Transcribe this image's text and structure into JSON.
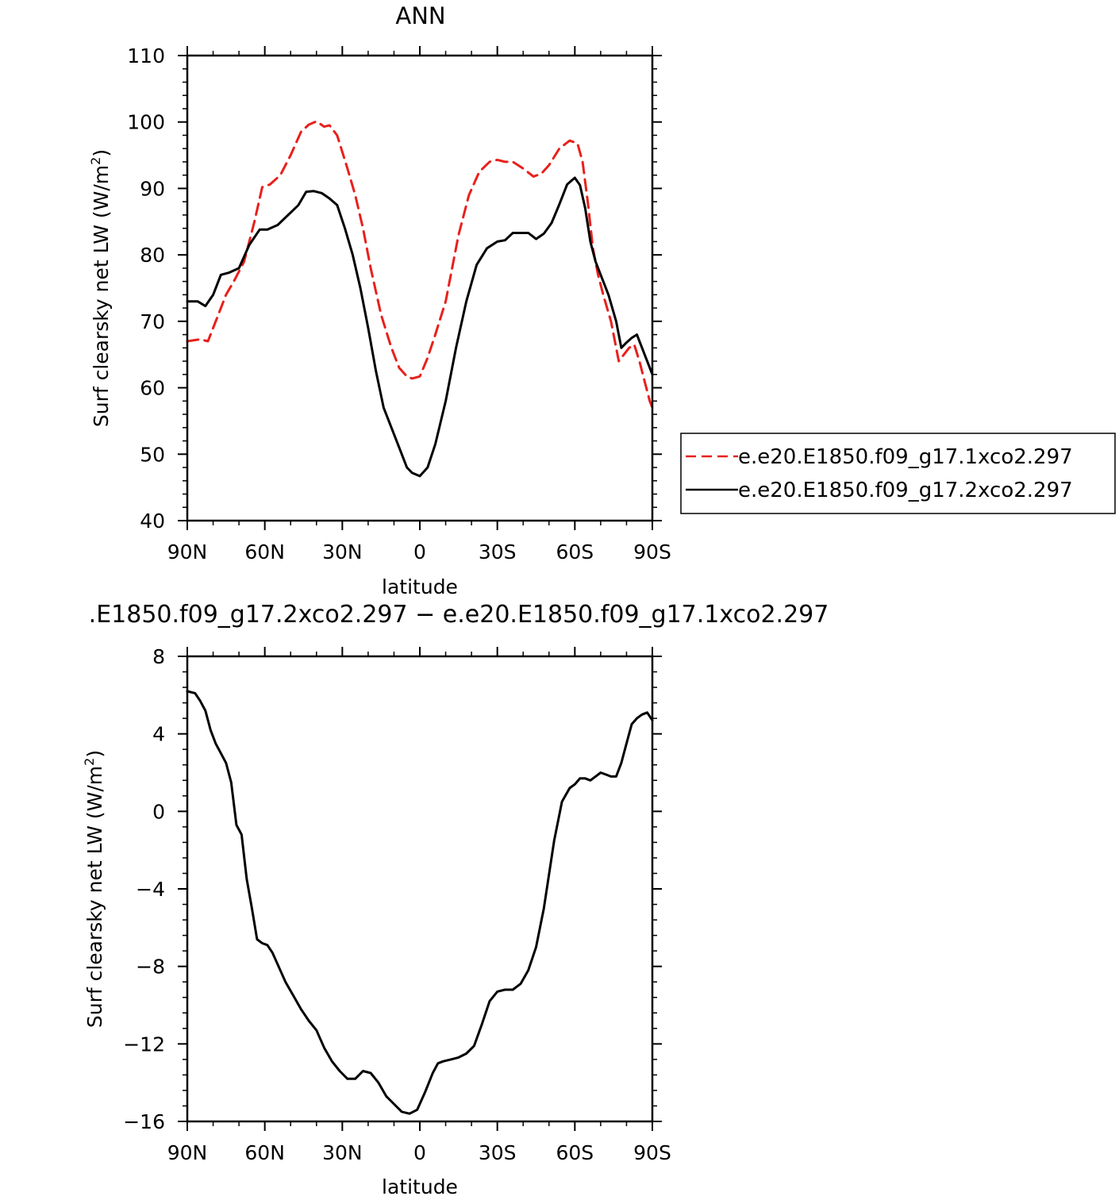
{
  "chart_data": [
    {
      "type": "line",
      "title": "ANN",
      "xlabel": "latitude",
      "ylabel": "Surf clearsky net LW (W/m²)",
      "ylabel_parts": {
        "main": "Surf clearsky net LW (W/m",
        "sup": "2",
        "close": ")"
      },
      "xlim": [
        -90,
        90
      ],
      "ylim": [
        40,
        110
      ],
      "x_ticks": [
        -90,
        -60,
        -30,
        0,
        30,
        60,
        90
      ],
      "x_tick_labels": [
        "90N",
        "60N",
        "30N",
        "0",
        "30S",
        "60S",
        "90S"
      ],
      "y_ticks": [
        40,
        50,
        60,
        70,
        80,
        90,
        100,
        110
      ],
      "y_tick_labels": [
        "40",
        "50",
        "60",
        "70",
        "80",
        "90",
        "100",
        "110"
      ],
      "legend_position": "right",
      "series": [
        {
          "name": "e.e20.E1850.f09_g17.1xco2.297",
          "color": "#e8201c",
          "dash": "dashed",
          "x": [
            -90,
            -85,
            -82,
            -78,
            -75,
            -72,
            -68,
            -64,
            -61,
            -58,
            -54,
            -50,
            -46,
            -43,
            -40,
            -37,
            -35,
            -32,
            -28,
            -25,
            -22,
            -19,
            -15,
            -11,
            -8,
            -5,
            -3,
            0,
            3,
            6,
            10,
            15,
            19,
            23,
            27,
            30,
            33,
            36,
            40,
            44,
            47,
            50,
            54,
            58,
            61,
            63,
            65,
            67,
            69,
            71,
            74,
            77,
            79,
            81,
            83,
            85,
            87,
            89,
            90
          ],
          "y": [
            67,
            67.3,
            67,
            71,
            74,
            76,
            79,
            85,
            90.2,
            90.6,
            92,
            95,
            98.5,
            99.6,
            100.1,
            99.3,
            99.5,
            98,
            93,
            89,
            84,
            78,
            71,
            66,
            63,
            61.7,
            61.4,
            61.7,
            64.5,
            68,
            73,
            83,
            89,
            92.5,
            94,
            94.3,
            94,
            94,
            93,
            91.8,
            92.2,
            93.5,
            96,
            97.2,
            96.8,
            94,
            88,
            81,
            77,
            74,
            70,
            64,
            65,
            66,
            66.5,
            64,
            61,
            58,
            57
          ]
        },
        {
          "name": "e.e20.E1850.f09_g17.2xco2.297",
          "color": "#000000",
          "dash": "solid",
          "x": [
            -90,
            -86,
            -83,
            -80,
            -77,
            -74,
            -70,
            -66,
            -62,
            -59,
            -55,
            -51,
            -47,
            -44,
            -41,
            -38,
            -35,
            -32,
            -29,
            -26,
            -23,
            -20,
            -17,
            -14,
            -11,
            -8,
            -5,
            -3,
            0,
            3,
            6,
            10,
            14,
            18,
            22,
            26,
            30,
            33,
            36,
            39,
            42,
            45,
            48,
            51,
            54,
            57,
            60,
            62,
            64,
            66,
            68,
            70,
            73,
            76,
            78,
            80,
            82,
            84,
            86,
            88,
            90
          ],
          "y": [
            73,
            73,
            72.3,
            74,
            77,
            77.3,
            78,
            81.5,
            83.8,
            83.8,
            84.5,
            86,
            87.5,
            89.5,
            89.6,
            89.3,
            88.5,
            87.5,
            84,
            80,
            75,
            69,
            62.5,
            57,
            54,
            51,
            48,
            47.2,
            46.7,
            48,
            51.5,
            58,
            66,
            73,
            78.5,
            81,
            82,
            82.2,
            83.3,
            83.3,
            83.3,
            82.4,
            83.2,
            84.8,
            87.6,
            90.6,
            91.6,
            90.5,
            87,
            82,
            79,
            77,
            74,
            70,
            66,
            66.8,
            67.5,
            68,
            66,
            64,
            62
          ]
        }
      ]
    },
    {
      "type": "line",
      "title": ".E1850.f09_g17.2xco2.297 − e.e20.E1850.f09_g17.1xco2.297",
      "xlabel": "latitude",
      "ylabel": "Surf clearsky net LW (W/m²)",
      "ylabel_parts": {
        "main": "Surf clearsky net LW (W/m",
        "sup": "2",
        "close": ")"
      },
      "xlim": [
        -90,
        90
      ],
      "ylim": [
        -16,
        8
      ],
      "x_ticks": [
        -90,
        -60,
        -30,
        0,
        30,
        60,
        90
      ],
      "x_tick_labels": [
        "90N",
        "60N",
        "30N",
        "0",
        "30S",
        "60S",
        "90S"
      ],
      "y_ticks": [
        -16,
        -12,
        -8,
        -4,
        0,
        4,
        8
      ],
      "y_tick_labels": [
        "−16",
        "−12",
        "−8",
        "−4",
        "0",
        "4",
        "8"
      ],
      "series": [
        {
          "color": "#000000",
          "dash": "solid",
          "x": [
            -90,
            -87,
            -85,
            -83,
            -81,
            -79,
            -77,
            -75,
            -73,
            -71,
            -69,
            -67,
            -65,
            -63,
            -61,
            -59,
            -57,
            -55,
            -52,
            -49,
            -46,
            -43,
            -40,
            -37,
            -34,
            -31,
            -28,
            -25,
            -22,
            -19,
            -16,
            -13,
            -10,
            -7,
            -4,
            -1,
            2,
            5,
            7,
            9,
            12,
            15,
            18,
            21,
            24,
            27,
            30,
            33,
            36,
            39,
            42,
            45,
            48,
            52,
            55,
            58,
            60,
            62,
            64,
            66,
            68,
            70,
            72,
            74,
            76,
            78,
            80,
            82,
            84,
            86,
            88,
            90
          ],
          "y": [
            6.2,
            6.1,
            5.7,
            5.2,
            4.2,
            3.5,
            3.0,
            2.5,
            1.5,
            -0.7,
            -1.2,
            -3.5,
            -5.0,
            -6.6,
            -6.8,
            -6.9,
            -7.3,
            -7.9,
            -8.8,
            -9.5,
            -10.2,
            -10.8,
            -11.3,
            -12.2,
            -12.9,
            -13.4,
            -13.8,
            -13.8,
            -13.4,
            -13.5,
            -14.0,
            -14.7,
            -15.1,
            -15.5,
            -15.6,
            -15.4,
            -14.5,
            -13.5,
            -13.0,
            -12.9,
            -12.8,
            -12.7,
            -12.5,
            -12.1,
            -11.0,
            -9.8,
            -9.3,
            -9.2,
            -9.2,
            -8.9,
            -8.2,
            -7.0,
            -5.0,
            -1.5,
            0.5,
            1.2,
            1.4,
            1.7,
            1.7,
            1.6,
            1.8,
            2.0,
            1.9,
            1.8,
            1.8,
            2.5,
            3.5,
            4.5,
            4.8,
            5.0,
            5.1,
            4.7
          ]
        }
      ]
    }
  ]
}
